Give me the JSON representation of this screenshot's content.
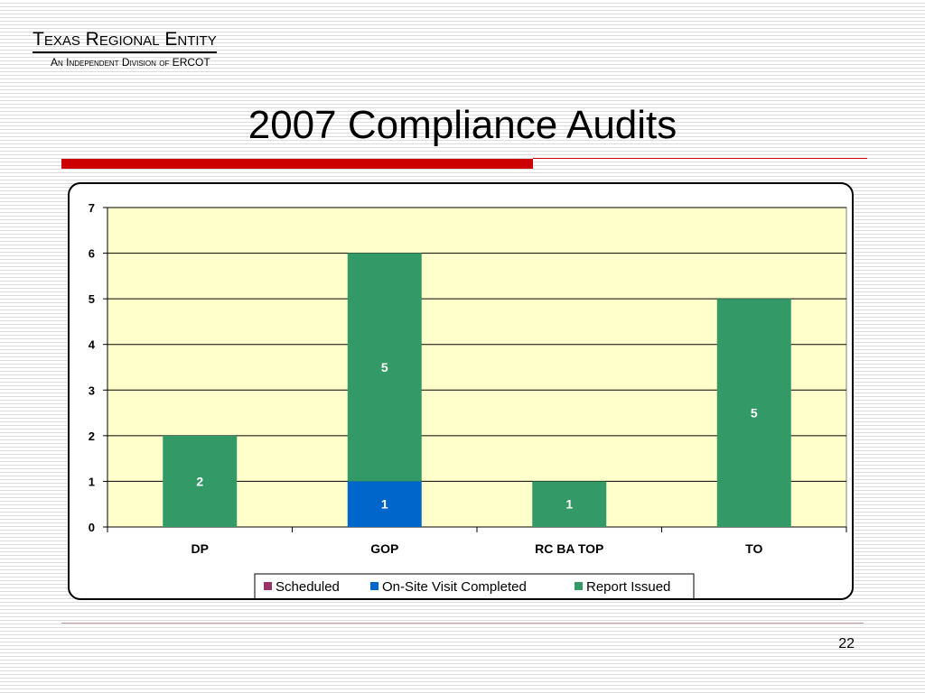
{
  "header": {
    "org_name": "Texas Regional Entity",
    "org_subtitle": "An Independent Division of ERCOT"
  },
  "slide": {
    "title": "2007 Compliance Audits",
    "page_number": "22"
  },
  "colors": {
    "plot_bg": "#ffffcc",
    "accent_red": "#cc0000"
  },
  "chart_data": {
    "type": "bar",
    "stacked": true,
    "categories": [
      "DP",
      "GOP",
      "RC BA TOP",
      "TO"
    ],
    "series": [
      {
        "name": "Scheduled",
        "color": "#993366",
        "values": [
          0,
          0,
          0,
          0
        ]
      },
      {
        "name": "On-Site Visit Completed",
        "color": "#0066cc",
        "values": [
          0,
          1,
          0,
          0
        ]
      },
      {
        "name": "Report Issued",
        "color": "#339966",
        "values": [
          2,
          5,
          1,
          5
        ]
      }
    ],
    "yticks": [
      "0",
      "1",
      "2",
      "3",
      "4",
      "5",
      "6",
      "7"
    ],
    "ylim": [
      0,
      7
    ],
    "grid": true,
    "legend_position": "bottom"
  }
}
